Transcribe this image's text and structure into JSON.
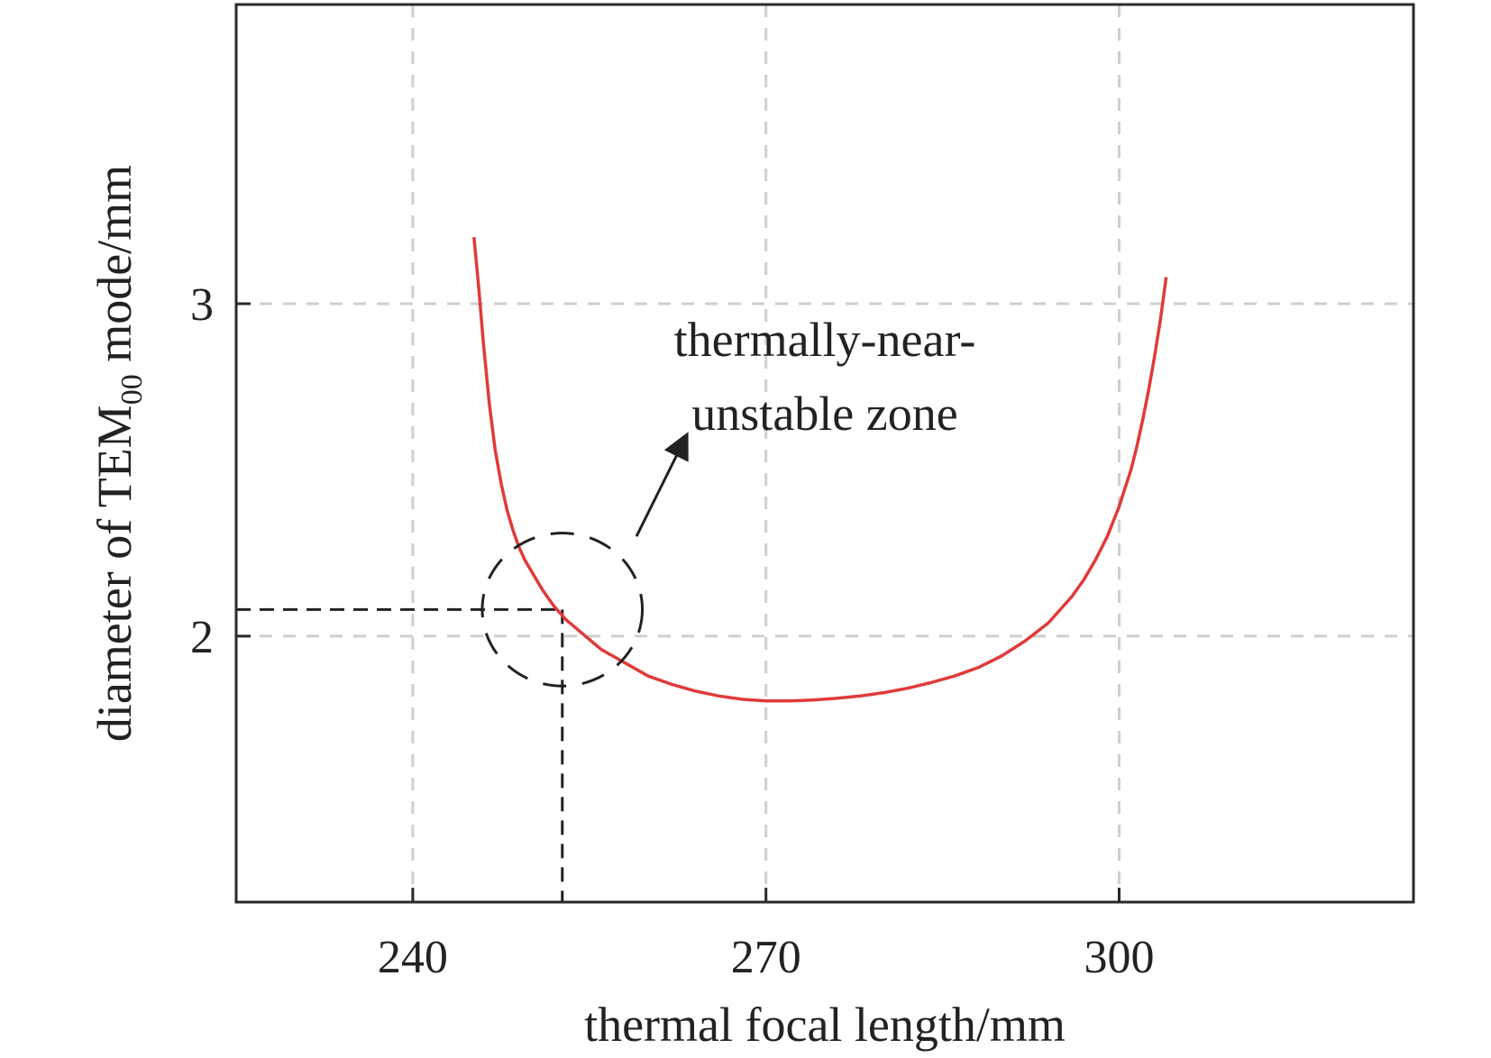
{
  "chart_data": {
    "type": "line",
    "title": "",
    "xlabel": "thermal focal length/mm",
    "ylabel": {
      "prefix": "diameter of TEM",
      "subscript": "00",
      "suffix": " mode/mm"
    },
    "xlim": [
      225,
      325
    ],
    "ylim": [
      1.2,
      3.9
    ],
    "x_ticks": [
      240,
      270,
      300
    ],
    "y_ticks": [
      2,
      3
    ],
    "grid": true,
    "series": [
      {
        "color": "#e03a3a",
        "x": [
          245.2,
          245.6,
          246.0,
          246.5,
          247.0,
          247.5,
          248.0,
          248.5,
          249.0,
          249.5,
          250.0,
          251.0,
          252.0,
          253.0,
          254.0,
          255.0,
          256.0,
          258.0,
          260.0,
          262.0,
          264.0,
          266.0,
          268.0,
          270.0,
          272.0,
          274.0,
          276.0,
          278.0,
          280.0,
          282.0,
          284.0,
          286.0,
          288.0,
          290.0,
          292.0,
          294.0,
          296.0,
          297.0,
          298.0,
          299.0,
          300.0,
          301.0,
          301.5,
          302.0,
          302.5,
          303.0,
          303.5,
          304.0
        ],
        "y": [
          3.2,
          3.05,
          2.88,
          2.7,
          2.56,
          2.46,
          2.38,
          2.32,
          2.27,
          2.23,
          2.2,
          2.14,
          2.09,
          2.05,
          2.02,
          1.99,
          1.96,
          1.92,
          1.88,
          1.855,
          1.835,
          1.82,
          1.81,
          1.805,
          1.805,
          1.808,
          1.813,
          1.82,
          1.83,
          1.843,
          1.86,
          1.88,
          1.905,
          1.94,
          1.985,
          2.04,
          2.12,
          2.17,
          2.23,
          2.3,
          2.39,
          2.5,
          2.57,
          2.65,
          2.74,
          2.84,
          2.95,
          3.08
        ]
      }
    ],
    "marker": {
      "x": 252.7,
      "y": 2.08
    },
    "zone_ellipse": {
      "cx": 252.7,
      "cy": 2.08,
      "rx": 6.8,
      "ry": 0.23
    },
    "annotation": {
      "lines": [
        "thermally-near-",
        "unstable zone"
      ],
      "arrow_from": [
        259.0,
        2.3
      ],
      "arrow_to": [
        263.2,
        2.6
      ]
    }
  }
}
